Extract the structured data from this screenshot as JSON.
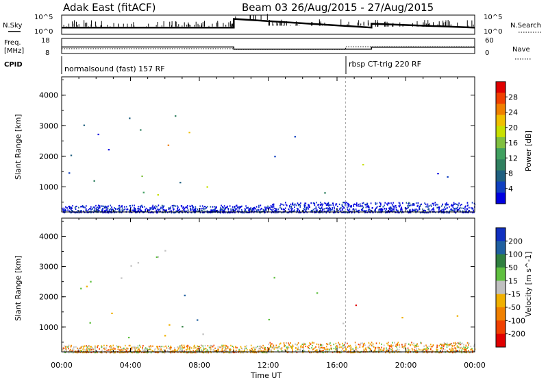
{
  "header": {
    "radar": "Adak East (fitACF)",
    "beam_date": "Beam 03 26/Aug/2015 - 27/Aug/2015"
  },
  "left_labels": {
    "nsky": "N.Sky",
    "freq": "Freq.",
    "mhz": "[MHz]",
    "cpid": "CPID"
  },
  "right_labels": {
    "nsearch": "N.Search",
    "nave": "Nave"
  },
  "cpid_modes": [
    {
      "label": "normalsound (fast) 157 RF",
      "start_hour": 0
    },
    {
      "label": "rbsp CT-trig 220 RF",
      "start_hour": 16.5
    }
  ],
  "colors": {
    "frame": "#000000",
    "gray_scatter": "#c0c0c0"
  },
  "chart_data": [
    {
      "type": "line",
      "name": "noise-panel",
      "left_ticks": [
        "10^5",
        "10^0"
      ],
      "right_ticks": [
        "10^5",
        "10^0"
      ],
      "series": [
        {
          "x_hours": [
            0,
            10,
            10,
            18,
            18,
            24
          ],
          "level": [
            0.35,
            0.35,
            0.8,
            0.35,
            0.55,
            0.35
          ]
        }
      ]
    },
    {
      "type": "line",
      "name": "frequency-panel",
      "left_ticks": [
        "18",
        "8"
      ],
      "right_ticks": [
        "60",
        "0"
      ],
      "freq_ylim": [
        8,
        18
      ],
      "freq_series": {
        "x_hours": [
          0,
          10,
          10,
          18,
          18,
          24
        ],
        "mhz": [
          12.3,
          12.3,
          10.9,
          10.9,
          12.2,
          12.2
        ]
      },
      "nave_ylim": [
        0,
        60
      ],
      "nave_series": {
        "x_hours": [
          0,
          10,
          10,
          16.5,
          16.5,
          24
        ],
        "count": [
          19,
          19,
          16,
          16,
          27,
          27
        ]
      }
    },
    {
      "type": "heatmap",
      "name": "power-panel",
      "ylabel": "Slant Range [km]",
      "y_ticks": [
        "4000",
        "3000",
        "2000",
        "1000"
      ],
      "ylim": [
        180,
        4600
      ],
      "x_ticks": [
        "00:00",
        "04:00",
        "08:00",
        "12:00",
        "16:00",
        "20:00",
        "00:00"
      ],
      "xlim_hours": [
        0,
        24
      ],
      "colorbar": {
        "label": "Power [dB]",
        "ticks": [
          "28",
          "24",
          "20",
          "16",
          "12",
          "8",
          "4"
        ],
        "colors": [
          "#e00000",
          "#f04000",
          "#f08000",
          "#f0c000",
          "#c8e000",
          "#80c040",
          "#40a060",
          "#308060",
          "#206080",
          "#1040c0",
          "#0000e0"
        ]
      },
      "regions": [
        {
          "h": [
            0.5,
            1.3
          ],
          "km": [
            2700,
            3300
          ],
          "c": 9
        },
        {
          "h": [
            1.2,
            3.8
          ],
          "km": [
            2200,
            2950
          ],
          "c": 9
        },
        {
          "h": [
            3.5,
            7.0
          ],
          "km": [
            2800,
            3550
          ],
          "c": 8
        },
        {
          "h": [
            5.5,
            7.4
          ],
          "km": [
            2200,
            2900
          ],
          "c": 3
        },
        {
          "h": [
            6.0,
            7.0
          ],
          "km": [
            2100,
            2600
          ],
          "c": 2
        },
        {
          "h": [
            0.0,
            2.5
          ],
          "km": [
            1900,
            2200
          ],
          "c": 9
        },
        {
          "h": [
            0.3,
            3.0
          ],
          "km": [
            1100,
            1600
          ],
          "c": 8
        },
        {
          "h": [
            3.8,
            7.0
          ],
          "km": [
            700,
            1400
          ],
          "c": 6
        },
        {
          "h": [
            5.0,
            6.5
          ],
          "km": [
            650,
            1000
          ],
          "c": 4
        },
        {
          "h": [
            6.8,
            10.5
          ],
          "km": [
            1000,
            1300
          ],
          "c": 7
        },
        {
          "h": [
            8.0,
            10.5
          ],
          "km": [
            850,
            1100
          ],
          "c": 5
        },
        {
          "h": [
            10.5,
            12.5
          ],
          "km": [
            2000,
            2500
          ],
          "c": 9
        },
        {
          "h": [
            12.5,
            13.5
          ],
          "km": [
            1100,
            1300
          ],
          "c": 8
        },
        {
          "h": [
            14.5,
            16.5
          ],
          "km": [
            700,
            1200
          ],
          "c": 8
        },
        {
          "h": [
            16.0,
            16.8
          ],
          "km": [
            1600,
            2000
          ],
          "c": 7
        },
        {
          "h": [
            16.9,
            18.5
          ],
          "km": [
            1500,
            2100
          ],
          "c": 3
        },
        {
          "h": [
            18.8,
            24.0
          ],
          "km": [
            1200,
            1500
          ],
          "c": 9
        },
        {
          "h": [
            13.0,
            15.0
          ],
          "km": [
            2300,
            2700
          ],
          "c": 9
        }
      ],
      "ground_band": {
        "km": [
          180,
          420
        ],
        "c": 10
      }
    },
    {
      "type": "heatmap",
      "name": "velocity-panel",
      "ylabel": "Slant Range [km]",
      "y_ticks": [
        "4000",
        "3000",
        "2000",
        "1000"
      ],
      "ylim": [
        180,
        4600
      ],
      "x_ticks": [
        "00:00",
        "04:00",
        "08:00",
        "12:00",
        "16:00",
        "20:00",
        "00:00"
      ],
      "xlim_hours": [
        0,
        24
      ],
      "xlabel": "Time UT",
      "colorbar": {
        "label": "Velocity [m s^-1]",
        "ticks": [
          "200",
          "100",
          "50",
          "15",
          "-15",
          "-50",
          "-100",
          "-200"
        ],
        "colors": [
          "#1030c0",
          "#2060a0",
          "#308040",
          "#60c040",
          "#c0c0c0",
          "#f0b000",
          "#f08000",
          "#f04000",
          "#e00000"
        ]
      },
      "regions": [
        {
          "h": [
            0.5,
            3.8
          ],
          "km": [
            2200,
            3300
          ],
          "c": 4
        },
        {
          "h": [
            3.5,
            7.0
          ],
          "km": [
            2300,
            3550
          ],
          "c": 4
        },
        {
          "h": [
            6.5,
            7.5
          ],
          "km": [
            1800,
            2300
          ],
          "c": 0
        },
        {
          "h": [
            0.0,
            3.0
          ],
          "km": [
            900,
            1600
          ],
          "c": 4
        },
        {
          "h": [
            3.8,
            6.8
          ],
          "km": [
            600,
            1400
          ],
          "c": 4
        },
        {
          "h": [
            6.5,
            8.5
          ],
          "km": [
            500,
            900
          ],
          "c": 5
        },
        {
          "h": [
            6.8,
            10.5
          ],
          "km": [
            800,
            1300
          ],
          "c": 2
        },
        {
          "h": [
            8.5,
            9.5
          ],
          "km": [
            750,
            1100
          ],
          "c": 7
        },
        {
          "h": [
            10.5,
            13.0
          ],
          "km": [
            900,
            1300
          ],
          "c": 2
        },
        {
          "h": [
            14.5,
            16.5
          ],
          "km": [
            800,
            1300
          ],
          "c": 3
        },
        {
          "h": [
            16.8,
            18.5
          ],
          "km": [
            1400,
            2100
          ],
          "c": 8
        },
        {
          "h": [
            18.8,
            24.0
          ],
          "km": [
            1200,
            1500
          ],
          "c": 4
        },
        {
          "h": [
            12.0,
            15.0
          ],
          "km": [
            2000,
            2700
          ],
          "c": 4
        }
      ],
      "ground_band": {
        "km": [
          180,
          420
        ],
        "c": 5
      }
    }
  ]
}
